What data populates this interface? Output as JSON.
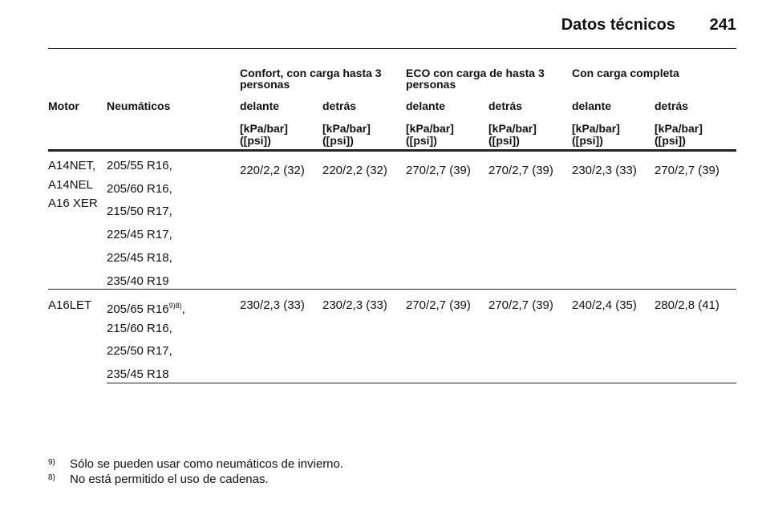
{
  "header": {
    "title": "Datos técnicos",
    "page": "241"
  },
  "table": {
    "groups": [
      "Confort, con carga hasta 3 personas",
      "ECO con carga de hasta 3 personas",
      "Con carga completa"
    ],
    "columns": [
      "Motor",
      "Neumáticos",
      "delante",
      "detrás",
      "delante",
      "detrás",
      "delante",
      "detrás"
    ],
    "units": [
      [
        "[kPa/bar]",
        "([psi])"
      ],
      [
        "[kPa/bar]",
        "([psi])"
      ],
      [
        "[kPa/bar]",
        "([psi])"
      ],
      [
        "[kPa/bar]",
        "([psi])"
      ],
      [
        "[kPa/bar]",
        "([psi])"
      ],
      [
        "[kPa/bar]",
        "([psi])"
      ]
    ],
    "rows": [
      {
        "motors": [
          "A14NET,",
          "A14NEL",
          "A16 XER"
        ],
        "tires": [
          {
            "text": "205/55 R16,"
          },
          {
            "text": "205/60 R16,"
          },
          {
            "text": "215/50 R17,"
          },
          {
            "text": "225/45 R17,"
          },
          {
            "text": "225/45 R18,"
          },
          {
            "text": "235/40 R19"
          }
        ],
        "pressures": [
          "220/2,2 (32)",
          "220/2,2 (32)",
          "270/2,7 (39)",
          "270/2,7 (39)",
          "230/2,3 (33)",
          "270/2,7 (39)"
        ]
      },
      {
        "motors": [
          "A16LET"
        ],
        "tires": [
          {
            "text": "205/65 R16",
            "sup": "9)8)",
            "suffix": ","
          },
          {
            "text": "215/60 R16,"
          },
          {
            "text": "225/50 R17,"
          },
          {
            "text": "235/45 R18"
          }
        ],
        "pressures": [
          "230/2,3 (33)",
          "230/2,3 (33)",
          "270/2,7 (39)",
          "270/2,7 (39)",
          "240/2,4 (35)",
          "280/2,8 (41)"
        ]
      }
    ]
  },
  "footnotes": [
    {
      "mark": "9)",
      "text": "Sólo se pueden usar como neumáticos de invierno."
    },
    {
      "mark": "8)",
      "text": "No está permitido el uso de cadenas."
    }
  ]
}
